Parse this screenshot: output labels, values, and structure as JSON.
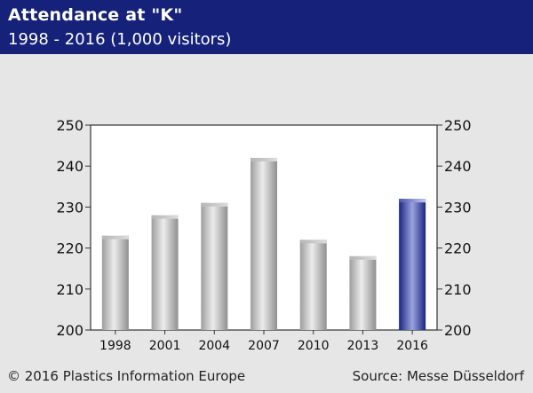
{
  "header": {
    "title": "Attendance at \"K\"",
    "subtitle": "1998 - 2016 (1,000 visitors)"
  },
  "footer": {
    "copyright": "© 2016 Plastics Information Europe",
    "source": "Source: Messe Düsseldorf"
  },
  "colors": {
    "header": "#16227a",
    "background": "#e6e6e6",
    "bar": "#b3b3b3",
    "highlight": "#1e2a8c"
  },
  "chart_data": {
    "type": "bar",
    "categories": [
      "1998",
      "2001",
      "2004",
      "2007",
      "2010",
      "2013",
      "2016"
    ],
    "values": [
      223,
      228,
      231,
      242,
      222,
      218,
      232
    ],
    "highlight_category": "2016",
    "ylim": [
      200,
      250
    ],
    "yticks": [
      200,
      210,
      220,
      230,
      240,
      250
    ],
    "grid": false,
    "axis_labels_both_sides": true
  }
}
